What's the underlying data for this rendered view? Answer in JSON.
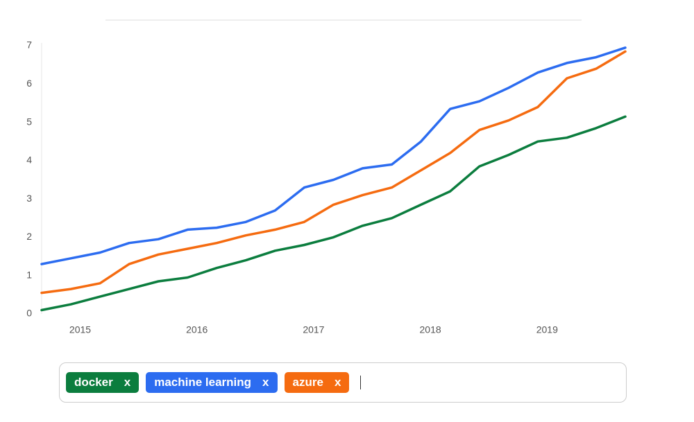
{
  "chart_data": {
    "type": "line",
    "x": [
      2014.67,
      2014.92,
      2015.17,
      2015.42,
      2015.67,
      2015.92,
      2016.17,
      2016.42,
      2016.67,
      2016.92,
      2017.17,
      2017.42,
      2017.67,
      2017.92,
      2018.17,
      2018.42,
      2018.67,
      2018.92,
      2019.17,
      2019.42,
      2019.67
    ],
    "series": [
      {
        "name": "docker",
        "color": "#0b7d3e",
        "values": [
          0.1,
          0.25,
          0.45,
          0.65,
          0.85,
          0.95,
          1.2,
          1.4,
          1.65,
          1.8,
          2.0,
          2.3,
          2.5,
          2.85,
          3.2,
          3.85,
          4.15,
          4.5,
          4.6,
          4.85,
          5.15
        ]
      },
      {
        "name": "machine learning",
        "color": "#2c6cf0",
        "values": [
          1.3,
          1.45,
          1.6,
          1.85,
          1.95,
          2.2,
          2.25,
          2.4,
          2.7,
          3.3,
          3.5,
          3.8,
          3.9,
          4.5,
          5.35,
          5.55,
          5.9,
          6.3,
          6.55,
          6.7,
          6.95
        ]
      },
      {
        "name": "azure",
        "color": "#f56b10",
        "values": [
          0.55,
          0.65,
          0.8,
          1.3,
          1.55,
          1.7,
          1.85,
          2.05,
          2.2,
          2.4,
          2.85,
          3.1,
          3.3,
          3.75,
          4.2,
          4.8,
          5.05,
          5.4,
          6.15,
          6.4,
          6.85
        ]
      }
    ],
    "xlim": [
      2014.67,
      2019.67
    ],
    "xticks": [
      2015,
      2016,
      2017,
      2018,
      2019
    ],
    "ylim": [
      0,
      7
    ],
    "yticks": [
      0,
      1,
      2,
      3,
      4,
      5,
      6,
      7
    ],
    "grid": false,
    "remove_label": "x"
  }
}
